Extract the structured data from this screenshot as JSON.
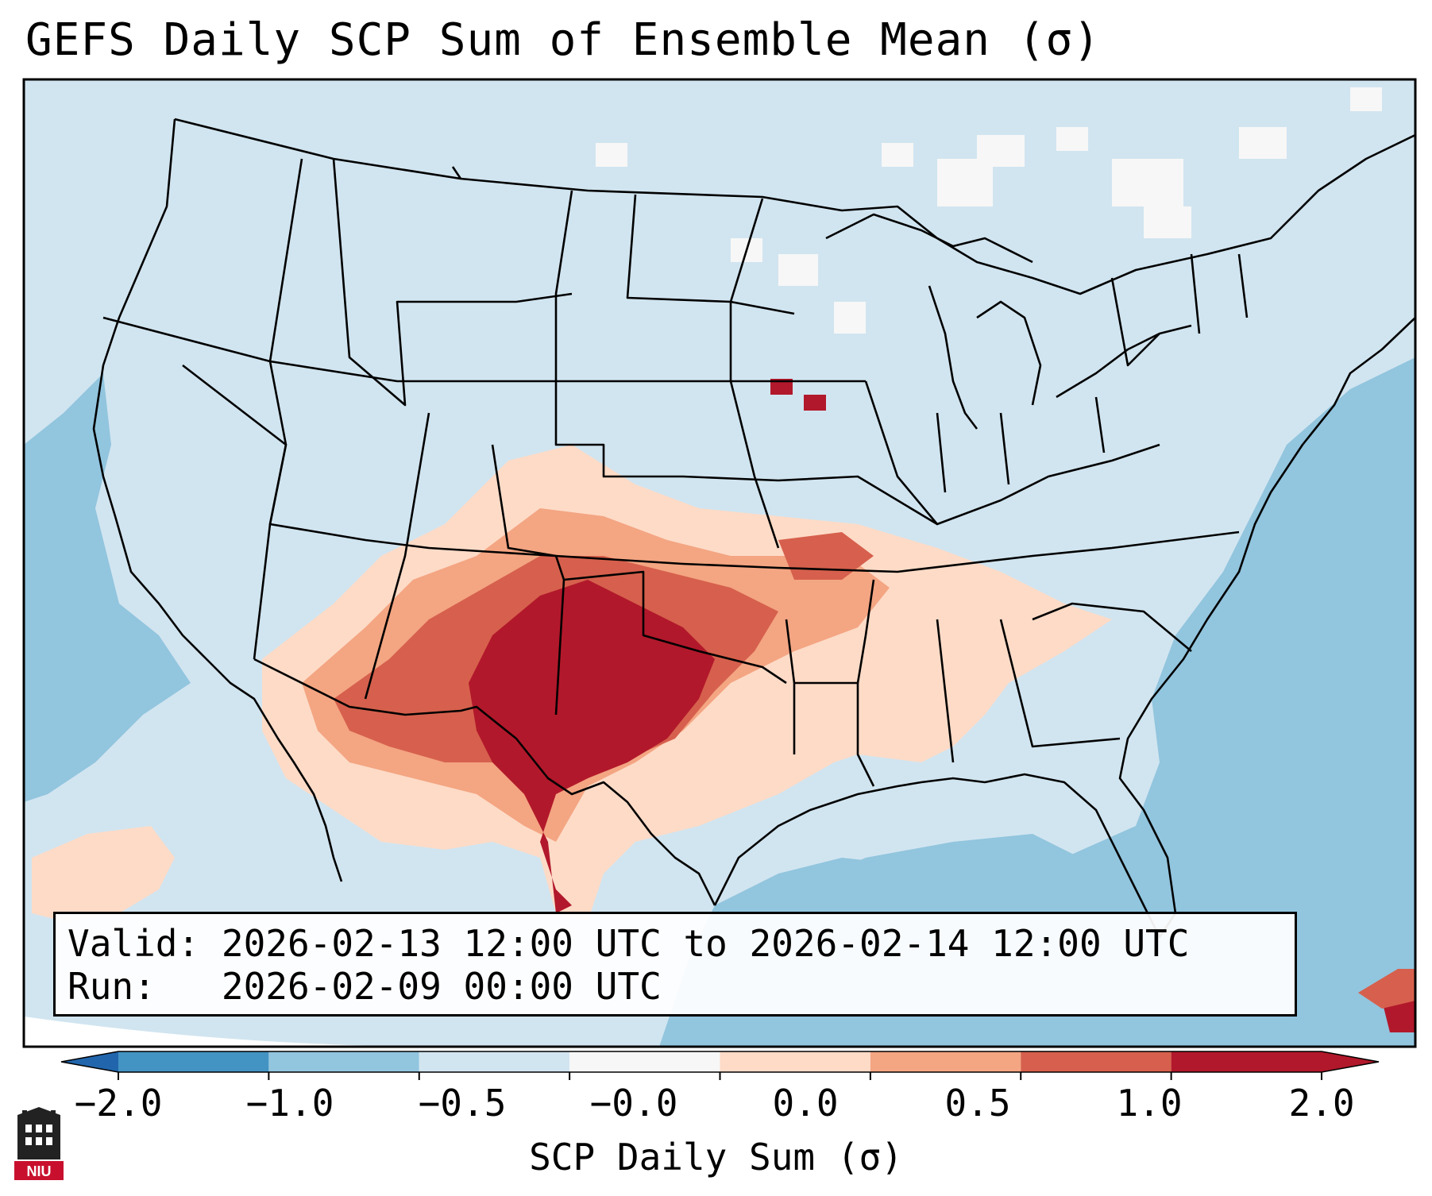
{
  "title": "GEFS Daily SCP Sum of Ensemble Mean (σ)",
  "info": {
    "valid_label": "Valid:",
    "valid_value": "2026-02-13 12:00 UTC to 2026-02-14 12:00 UTC",
    "run_label": "Run:",
    "run_value": "2026-02-09 00:00 UTC"
  },
  "colorbar": {
    "label": "SCP Daily Sum (σ)",
    "ticks": [
      "−2.0",
      "−1.0",
      "−0.5",
      "−0.0",
      "0.0",
      "0.5",
      "1.0",
      "2.0"
    ],
    "colors": [
      "#4393c3",
      "#92c5de",
      "#d1e5f0",
      "#f7f7f7",
      "#fddbc7",
      "#f4a582",
      "#d6604d",
      "#b2182b"
    ],
    "under_color": "#2166ac",
    "over_color": "#b2182b"
  },
  "map": {
    "region": "Contiguous United States",
    "max_anomaly_area": "Texas Panhandle / western Oklahoma",
    "land_color": "#d1e5f0",
    "ocean_color": "#92c5de",
    "anomaly_colors": {
      "light": "#fddbc7",
      "mid": "#f4a582",
      "strong": "#d6604d",
      "max": "#b2182b"
    }
  },
  "logo": {
    "text": "NIU",
    "icon": "niu-logo-icon"
  }
}
